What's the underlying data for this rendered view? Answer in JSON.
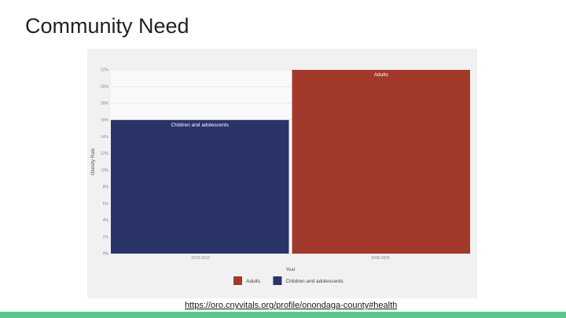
{
  "slide": {
    "title": "Community Need",
    "source_link": "https://oro.cnyvitals.org/profile/onondaga-county#health"
  },
  "chart_data": {
    "type": "bar",
    "ylabel": "Obesity Rate",
    "xlabel": "Year",
    "ylim": [
      0,
      22
    ],
    "y_ticks": [
      "0%",
      "2%",
      "4%",
      "6%",
      "8%",
      "10%",
      "12%",
      "14%",
      "16%",
      "18%",
      "20%",
      "22%"
    ],
    "categories": [
      "2010-2012",
      "2008-2009"
    ],
    "series": [
      {
        "name": "Children and adolescents",
        "category": "2010-2012",
        "value": 16,
        "color": "#2b3467"
      },
      {
        "name": "Adults",
        "category": "2008-2009",
        "value": 22,
        "color": "#a3392a"
      }
    ],
    "legend": [
      {
        "label": "Adults",
        "color": "#a3392a"
      },
      {
        "label": "Children and adolescents",
        "color": "#2b3467"
      }
    ],
    "legend_position": "bottom",
    "grid": true
  }
}
